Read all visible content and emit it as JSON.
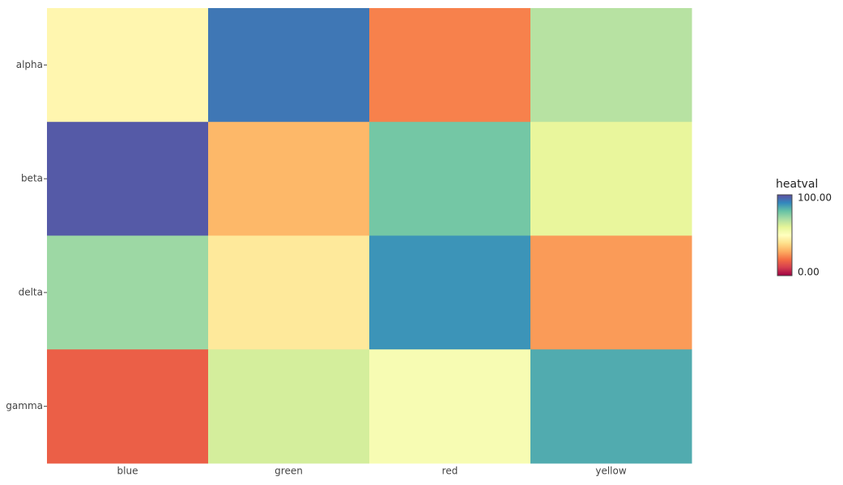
{
  "chart_data": {
    "type": "heatmap",
    "x": [
      "blue",
      "green",
      "red",
      "yellow"
    ],
    "y": [
      "alpha",
      "beta",
      "delta",
      "gamma"
    ],
    "z": [
      [
        47,
        93,
        23,
        68
      ],
      [
        98,
        32,
        78,
        59
      ],
      [
        72,
        43,
        88,
        27
      ],
      [
        17,
        63,
        53,
        84
      ]
    ],
    "colorscale": [
      "#9e0142",
      "#d53e4f",
      "#f46d43",
      "#fdae61",
      "#fee08b",
      "#ffffbf",
      "#e6f598",
      "#abdda4",
      "#66c2a5",
      "#3288bd",
      "#5e4fa2"
    ],
    "colorbar_title": "heatval",
    "zlim": [
      0,
      100
    ],
    "zticks": [
      {
        "value": 0,
        "label": "0.00"
      },
      {
        "value": 100,
        "label": "100.00"
      }
    ]
  }
}
